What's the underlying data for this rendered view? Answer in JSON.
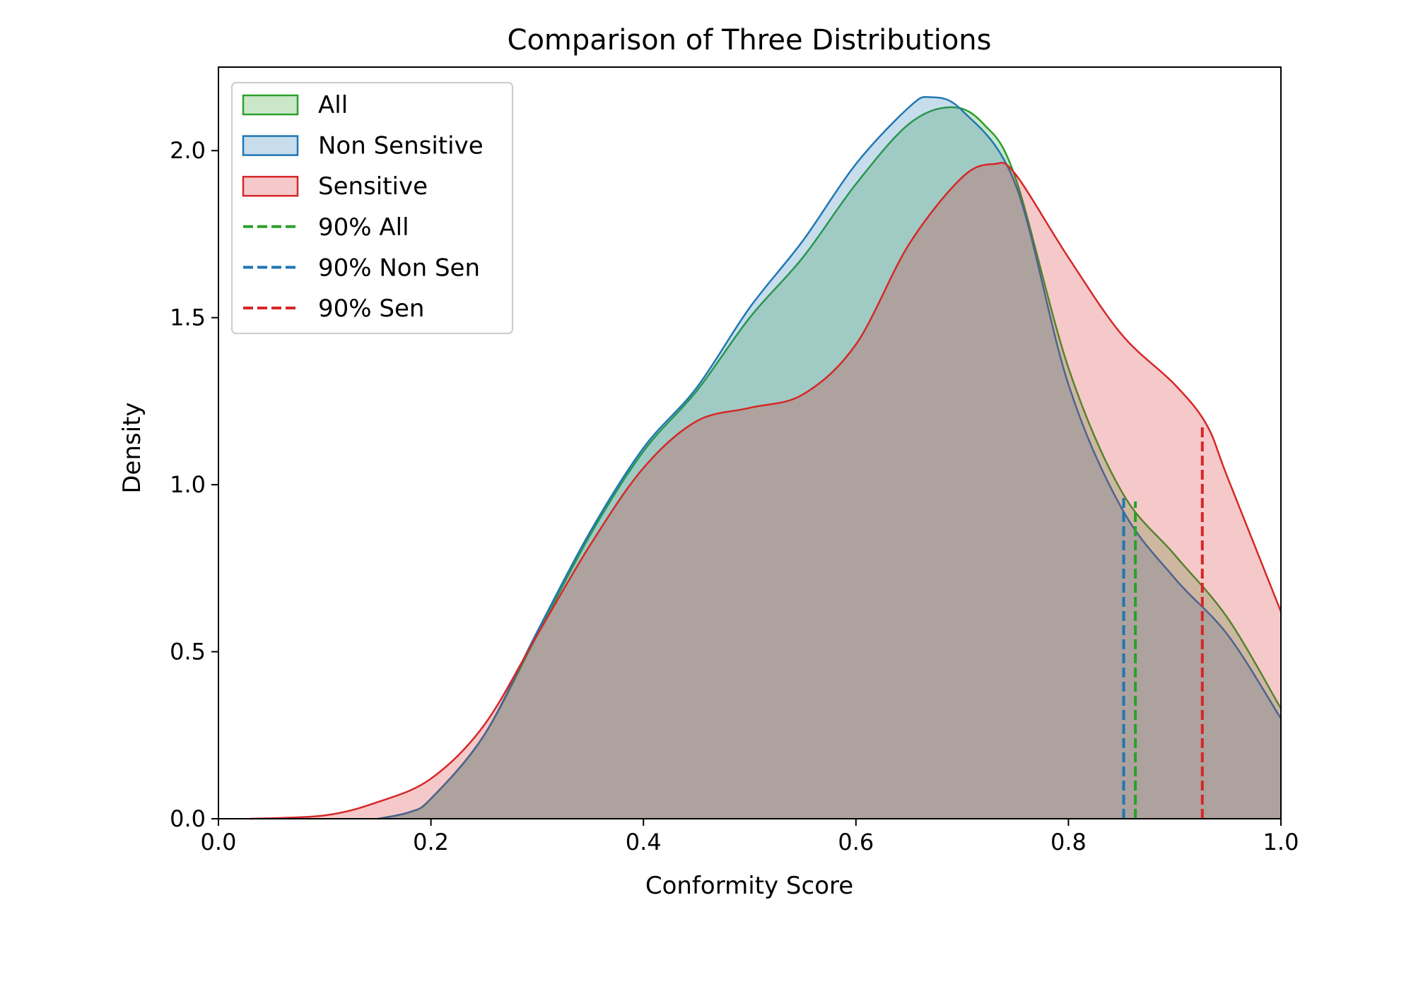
{
  "chart_data": {
    "type": "area",
    "title": "Comparison of Three Distributions",
    "xlabel": "Conformity Score",
    "ylabel": "Density",
    "xlim": [
      0.0,
      1.0
    ],
    "ylim": [
      0.0,
      2.25
    ],
    "xticks": [
      "0.0",
      "0.2",
      "0.4",
      "0.6",
      "0.8",
      "1.0"
    ],
    "yticks": [
      "0.0",
      "0.5",
      "1.0",
      "1.5",
      "2.0"
    ],
    "grid": false,
    "legend_placement": "top-left",
    "series": [
      {
        "name": "All",
        "color": "#2ca02c",
        "x": [
          0.15,
          0.18,
          0.2,
          0.25,
          0.3,
          0.35,
          0.4,
          0.45,
          0.5,
          0.55,
          0.6,
          0.65,
          0.69,
          0.72,
          0.75,
          0.8,
          0.85,
          0.9,
          0.95,
          1.0
        ],
        "y": [
          0,
          0.02,
          0.06,
          0.25,
          0.55,
          0.85,
          1.1,
          1.28,
          1.5,
          1.68,
          1.9,
          2.08,
          2.13,
          2.08,
          1.92,
          1.35,
          0.98,
          0.79,
          0.6,
          0.33
        ]
      },
      {
        "name": "Non Sensitive",
        "color": "#1f77b4",
        "x": [
          0.15,
          0.18,
          0.2,
          0.25,
          0.3,
          0.35,
          0.4,
          0.45,
          0.5,
          0.55,
          0.6,
          0.65,
          0.67,
          0.7,
          0.75,
          0.8,
          0.85,
          0.9,
          0.95,
          1.0
        ],
        "y": [
          0,
          0.02,
          0.06,
          0.25,
          0.56,
          0.86,
          1.11,
          1.29,
          1.53,
          1.73,
          1.96,
          2.13,
          2.16,
          2.12,
          1.9,
          1.3,
          0.93,
          0.72,
          0.55,
          0.3
        ]
      },
      {
        "name": "Sensitive",
        "color": "#d62728",
        "x": [
          0.03,
          0.1,
          0.15,
          0.2,
          0.25,
          0.3,
          0.35,
          0.4,
          0.45,
          0.5,
          0.55,
          0.6,
          0.65,
          0.7,
          0.73,
          0.75,
          0.8,
          0.85,
          0.9,
          0.93,
          0.95,
          1.0
        ],
        "y": [
          0,
          0.01,
          0.05,
          0.12,
          0.28,
          0.55,
          0.82,
          1.05,
          1.19,
          1.23,
          1.27,
          1.42,
          1.72,
          1.92,
          1.96,
          1.93,
          1.68,
          1.45,
          1.3,
          1.18,
          1.02,
          0.62
        ]
      }
    ],
    "vlines": [
      {
        "name": "90% All",
        "color": "#2ca02c",
        "x": 0.863,
        "ymax": 0.95
      },
      {
        "name": "90% Non Sen",
        "color": "#1f77b4",
        "x": 0.852,
        "ymax": 0.96
      },
      {
        "name": "90% Sen",
        "color": "#d62728",
        "x": 0.926,
        "ymax": 1.18
      }
    ]
  }
}
